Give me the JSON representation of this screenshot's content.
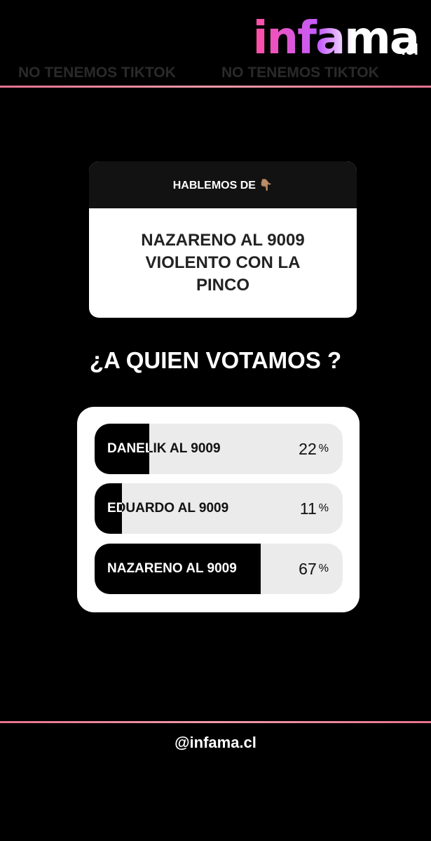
{
  "header": {
    "logo": "infama",
    "logo_suffix": ".cl",
    "watermark": [
      "NO TENEMOS TIKTOK",
      "NO TENEMOS TIKTOK"
    ]
  },
  "question": {
    "header": "HABLEMOS DE 👇🏽",
    "text": "NAZARENO AL 9009 VIOLENTO CON LA PINCO"
  },
  "poll": {
    "title": "¿A QUIEN VOTAMOS ?",
    "unit": "%",
    "options": [
      {
        "label": "DANELIK AL 9009",
        "value": 22
      },
      {
        "label": "EDUARDO AL 9009",
        "value": 11
      },
      {
        "label": "NAZARENO AL 9009",
        "value": 67
      }
    ]
  },
  "footer": {
    "handle": "@infama.cl"
  }
}
